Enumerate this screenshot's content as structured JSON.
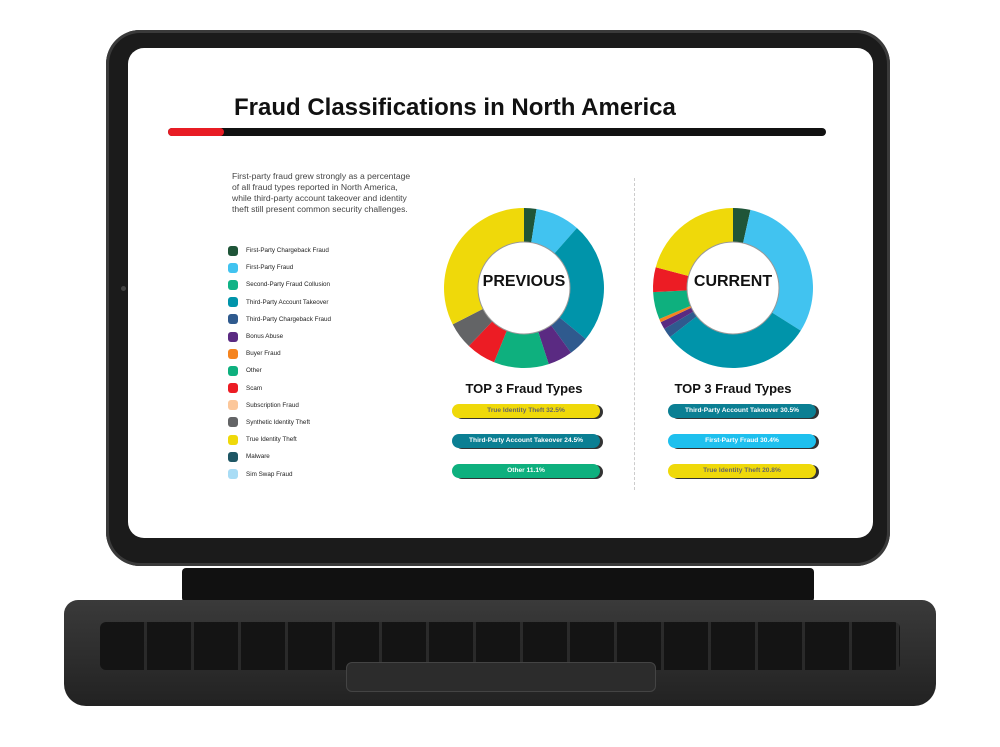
{
  "title": "Fraud Classifications in North America",
  "description": "First-party fraud grew strongly as a percentage of all fraud types reported in North America, while third-party account takeover and identity theft still present common security challenges.",
  "legend": [
    {
      "label": "First-Party Chargeback Fraud",
      "color": "#1f5538"
    },
    {
      "label": "First-Party Fraud",
      "color": "#41c3f0"
    },
    {
      "label": "Second-Party Fraud Collusion",
      "color": "#10b386"
    },
    {
      "label": "Third-Party Account Takeover",
      "color": "#0094aa"
    },
    {
      "label": "Third-Party Chargeback Fraud",
      "color": "#2f5a8e"
    },
    {
      "label": "Bonus Abuse",
      "color": "#5a2a82"
    },
    {
      "label": "Buyer Fraud",
      "color": "#f5841f"
    },
    {
      "label": "Other",
      "color": "#0eb07e"
    },
    {
      "label": "Scam",
      "color": "#ec1c24"
    },
    {
      "label": "Subscription Fraud",
      "color": "#fcc79a"
    },
    {
      "label": "Synthetic Identity Theft",
      "color": "#636466"
    },
    {
      "label": "True Identity Theft",
      "color": "#efd90a"
    },
    {
      "label": "Malware",
      "color": "#1e5664"
    },
    {
      "label": "Sim Swap Fraud",
      "color": "#a8dcf5"
    }
  ],
  "chart_data": [
    {
      "type": "pie",
      "title": "PREVIOUS",
      "hole": true,
      "slices": [
        {
          "label": "First-Party Chargeback Fraud",
          "value": 2.5
        },
        {
          "label": "First-Party Fraud",
          "value": 9
        },
        {
          "label": "Third-Party Account Takeover",
          "value": 24.5
        },
        {
          "label": "Third-Party Chargeback Fraud",
          "value": 4
        },
        {
          "label": "Bonus Abuse",
          "value": 5
        },
        {
          "label": "Other",
          "value": 11.1
        },
        {
          "label": "Scam",
          "value": 6
        },
        {
          "label": "Synthetic Identity Theft",
          "value": 5.4
        },
        {
          "label": "True Identity Theft",
          "value": 32.5
        }
      ],
      "top3_title": "TOP 3 Fraud Types",
      "top3": [
        {
          "text": "True Identity Theft 32.5%",
          "color": "#efd90a",
          "fg": "#666"
        },
        {
          "text": "Third-Party Account Takeover 24.5%",
          "color": "#0b7f93",
          "fg": "#fff"
        },
        {
          "text": "Other 11.1%",
          "color": "#0eb07e",
          "fg": "#fff"
        }
      ]
    },
    {
      "type": "pie",
      "title": "CURRENT",
      "hole": true,
      "slices": [
        {
          "label": "First-Party Chargeback Fraud",
          "value": 3.5
        },
        {
          "label": "First-Party Fraud",
          "value": 30.4
        },
        {
          "label": "Third-Party Account Takeover",
          "value": 30.5
        },
        {
          "label": "Third-Party Chargeback Fraud",
          "value": 2
        },
        {
          "label": "Bonus Abuse",
          "value": 1.5
        },
        {
          "label": "Buyer Fraud",
          "value": 0.7
        },
        {
          "label": "Other",
          "value": 5.5
        },
        {
          "label": "Scam",
          "value": 5
        },
        {
          "label": "True Identity Theft",
          "value": 20.8
        }
      ],
      "top3_title": "TOP 3 Fraud Types",
      "top3": [
        {
          "text": "Third-Party Account Takeover 30.5%",
          "color": "#0b7f93",
          "fg": "#fff"
        },
        {
          "text": "First-Party Fraud 30.4%",
          "color": "#1ec0ee",
          "fg": "#fff"
        },
        {
          "text": "True Identity Theft 20.8%",
          "color": "#efd90a",
          "fg": "#666"
        }
      ]
    }
  ]
}
